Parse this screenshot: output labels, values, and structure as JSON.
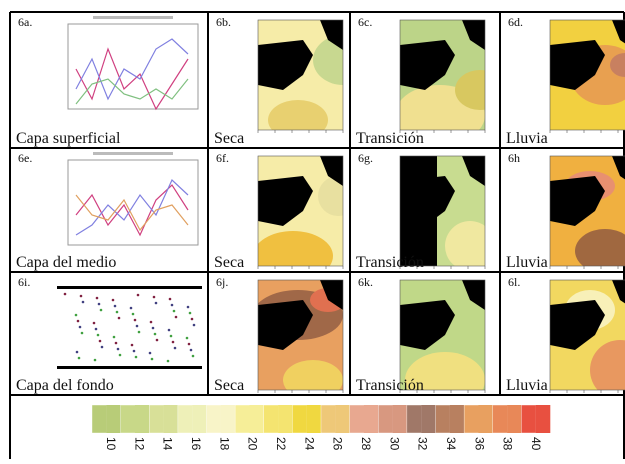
{
  "panels": [
    {
      "label": "6a.",
      "caption": "Capa superficial"
    },
    {
      "label": "6b.",
      "caption": "Seca"
    },
    {
      "label": "6c.",
      "caption": "Transición"
    },
    {
      "label": "6d.",
      "caption": "Lluvia"
    },
    {
      "label": "6e.",
      "caption": "Capa del medio"
    },
    {
      "label": "6f.",
      "caption": "Seca"
    },
    {
      "label": "6g.",
      "caption": "Transición"
    },
    {
      "label": "6h",
      "caption": "Lluvia"
    },
    {
      "label": "6i.",
      "caption": "Capa del fondo"
    },
    {
      "label": "6j.",
      "caption": "Seca"
    },
    {
      "label": "6k.",
      "caption": "Transición"
    },
    {
      "label": "6l.",
      "caption": "Lluvia"
    }
  ],
  "colorbar": {
    "ticks": [
      10,
      12,
      14,
      16,
      18,
      20,
      22,
      24,
      26,
      28,
      30,
      32,
      34,
      36,
      38,
      40
    ]
  }
}
